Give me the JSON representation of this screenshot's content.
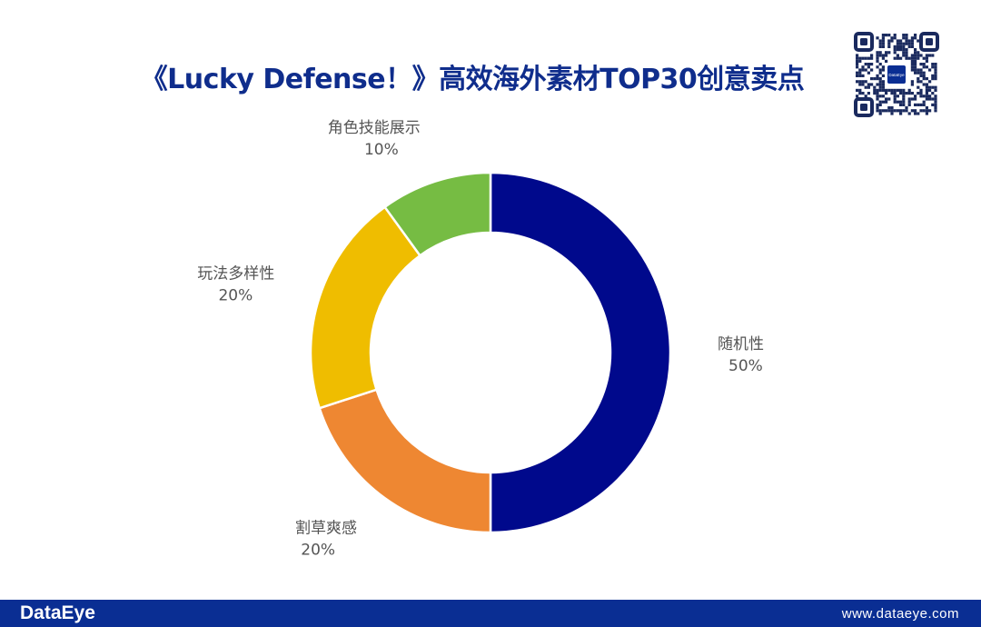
{
  "title": "《Lucky Defense！》高效海外素材TOP30创意卖点",
  "footer": {
    "brand": "DataEye",
    "url": "www.dataeye.com"
  },
  "qr": {
    "center_label": "DataEye"
  },
  "colors": {
    "title": "#0f2d8c",
    "footer": "#0a2e93",
    "label": "#555555"
  },
  "chart_data": {
    "type": "pie",
    "donut": true,
    "title": "",
    "slices": [
      {
        "label": "随机性",
        "value": 50,
        "display": "50%",
        "color": "#00098c"
      },
      {
        "label": "割草爽感",
        "value": 20,
        "display": "20%",
        "color": "#ee8732"
      },
      {
        "label": "玩法多样性",
        "value": 20,
        "display": "20%",
        "color": "#efbd00"
      },
      {
        "label": "角色技能展示",
        "value": 10,
        "display": "10%",
        "color": "#76bc43"
      }
    ]
  }
}
